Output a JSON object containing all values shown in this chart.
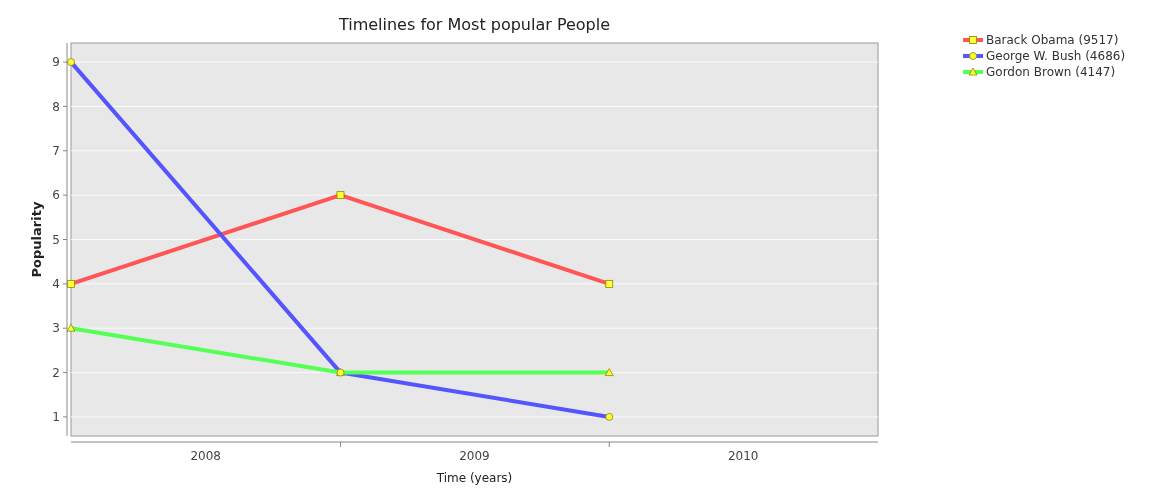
{
  "chart_data": {
    "type": "line",
    "title": "Timelines for Most popular People",
    "xlabel": "Time (years)",
    "ylabel": "Popularity",
    "x": [
      "2008",
      "2009",
      "2010"
    ],
    "xlim": [
      "2008",
      "2011"
    ],
    "xticks": [
      {
        "value": "2008-07-02",
        "label": "2008"
      },
      {
        "value": "2009",
        "label": null
      },
      {
        "value": "2009-07-02",
        "label": "2009"
      },
      {
        "value": "2010",
        "label": null
      },
      {
        "value": "2010-07-02",
        "label": "2010"
      }
    ],
    "ylim": [
      0.57,
      9.43
    ],
    "yticks": [
      1,
      2,
      3,
      4,
      5,
      6,
      7,
      8,
      9
    ],
    "grid": "y",
    "legend": "top right",
    "series": [
      {
        "name": "Barack Obama (9517)",
        "color": "#ff5555",
        "marker": "square",
        "values": [
          4,
          6,
          4
        ]
      },
      {
        "name": "George W. Bush (4686)",
        "color": "#5555ff",
        "marker": "circle",
        "values": [
          9,
          2,
          1
        ]
      },
      {
        "name": "Gordon Brown (4147)",
        "color": "#55ff55",
        "marker": "triangle",
        "values": [
          3,
          2,
          2
        ]
      }
    ]
  }
}
